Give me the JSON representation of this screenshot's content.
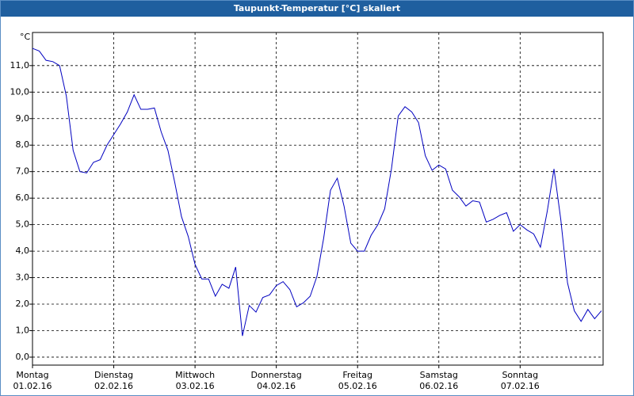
{
  "chart_data": {
    "type": "line",
    "title": "Taupunkt-Temperatur [°C] skaliert",
    "y_unit": "°C",
    "x": [
      0,
      2,
      4,
      6,
      8,
      10,
      12,
      14,
      16,
      18,
      20,
      22,
      24,
      26,
      28,
      30,
      32,
      34,
      36,
      38,
      40,
      42,
      44,
      46,
      48,
      50,
      52,
      54,
      56,
      58,
      60,
      62,
      64,
      66,
      68,
      70,
      72,
      74,
      76,
      78,
      80,
      82,
      84,
      86,
      88,
      90,
      92,
      94,
      96,
      98,
      100,
      102,
      104,
      106,
      108,
      110,
      112,
      114,
      116,
      118,
      120,
      122,
      124,
      126,
      128,
      130,
      132,
      134,
      136,
      138,
      140,
      142,
      144,
      146,
      148,
      150,
      152,
      154,
      156,
      158,
      160,
      162,
      164,
      166,
      168
    ],
    "series": [
      {
        "name": "Taupunkt-Temperatur",
        "color": "#0000c0",
        "values": [
          11.65,
          11.55,
          11.2,
          11.15,
          11.0,
          9.85,
          7.8,
          7.0,
          6.95,
          7.35,
          7.45,
          8.0,
          8.4,
          8.8,
          9.25,
          9.9,
          9.35,
          9.35,
          9.4,
          8.5,
          7.8,
          6.6,
          5.3,
          4.55,
          3.5,
          2.95,
          2.95,
          2.3,
          2.75,
          2.6,
          3.4,
          0.8,
          1.95,
          1.7,
          2.25,
          2.35,
          2.7,
          2.85,
          2.55,
          1.9,
          2.05,
          2.3,
          3.05,
          4.5,
          6.3,
          6.75,
          5.7,
          4.3,
          4.0,
          4.0,
          4.6,
          5.0,
          5.6,
          7.1,
          9.1,
          9.45,
          9.25,
          8.85,
          7.6,
          7.05,
          7.25,
          7.1,
          6.3,
          6.05,
          5.7,
          5.9,
          5.85,
          5.1,
          5.2,
          5.35,
          5.45,
          4.75,
          5.0,
          4.8,
          4.65,
          4.15,
          5.5,
          7.1,
          5.2,
          2.8,
          1.75,
          1.35,
          1.8,
          1.45,
          1.75
        ]
      }
    ],
    "xlim": [
      0,
      168.5
    ],
    "xticks": [
      {
        "value": 0,
        "label": "Montag\n01.02.16"
      },
      {
        "value": 24,
        "label": "Dienstag\n02.02.16"
      },
      {
        "value": 48,
        "label": "Mittwoch\n03.02.16"
      },
      {
        "value": 72,
        "label": "Donnerstag\n04.02.16"
      },
      {
        "value": 96,
        "label": "Freitag\n05.02.16"
      },
      {
        "value": 120,
        "label": "Samstag\n06.02.16"
      },
      {
        "value": 144,
        "label": "Sonntag\n07.02.16"
      }
    ],
    "ylim": [
      -0.3,
      12.25
    ],
    "yticks": [
      {
        "value": 0,
        "label": "0,0"
      },
      {
        "value": 1,
        "label": "1,0"
      },
      {
        "value": 2,
        "label": "2,0"
      },
      {
        "value": 3,
        "label": "3,0"
      },
      {
        "value": 4,
        "label": "4,0"
      },
      {
        "value": 5,
        "label": "5,0"
      },
      {
        "value": 6,
        "label": "6,0"
      },
      {
        "value": 7,
        "label": "7,0"
      },
      {
        "value": 8,
        "label": "8,0"
      },
      {
        "value": 9,
        "label": "9,0"
      },
      {
        "value": 10,
        "label": "10,0"
      },
      {
        "value": 11,
        "label": "11,0"
      }
    ],
    "grid": true
  }
}
